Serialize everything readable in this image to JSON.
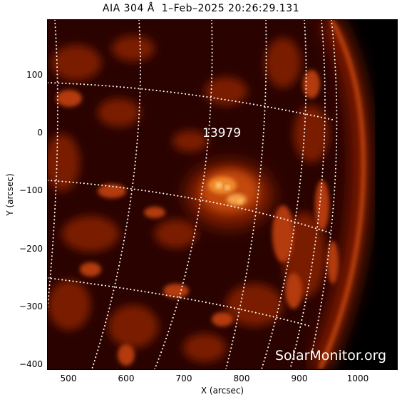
{
  "title": "AIA 304 Å  1–Feb–2025 20:26:29.131",
  "xlabel": "X (arcsec)",
  "ylabel": "Y (arcsec)",
  "x_ticks": [
    "500",
    "600",
    "700",
    "800",
    "900",
    "1000"
  ],
  "y_ticks": [
    "100",
    "0",
    "−100",
    "−200",
    "−300",
    "−400"
  ],
  "active_region": "13979",
  "watermark": "SolarMonitor.org",
  "colors": {
    "background": "#000000",
    "emission_dark": "#5a0a00",
    "emission_mid": "#b83a0a",
    "emission_bright": "#ffd27a",
    "grid": "#ffffff"
  },
  "grid_style": "dotted heliographic grid"
}
